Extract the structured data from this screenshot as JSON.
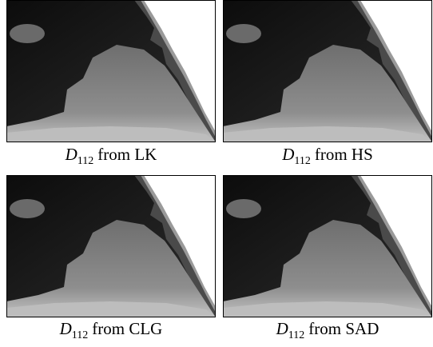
{
  "panels": [
    {
      "symbol": "D",
      "subscript": "112",
      "method": "from LK"
    },
    {
      "symbol": "D",
      "subscript": "112",
      "method": "from HS"
    },
    {
      "symbol": "D",
      "subscript": "112",
      "method": "from CLG"
    },
    {
      "symbol": "D",
      "subscript": "112",
      "method": "from SAD"
    }
  ]
}
